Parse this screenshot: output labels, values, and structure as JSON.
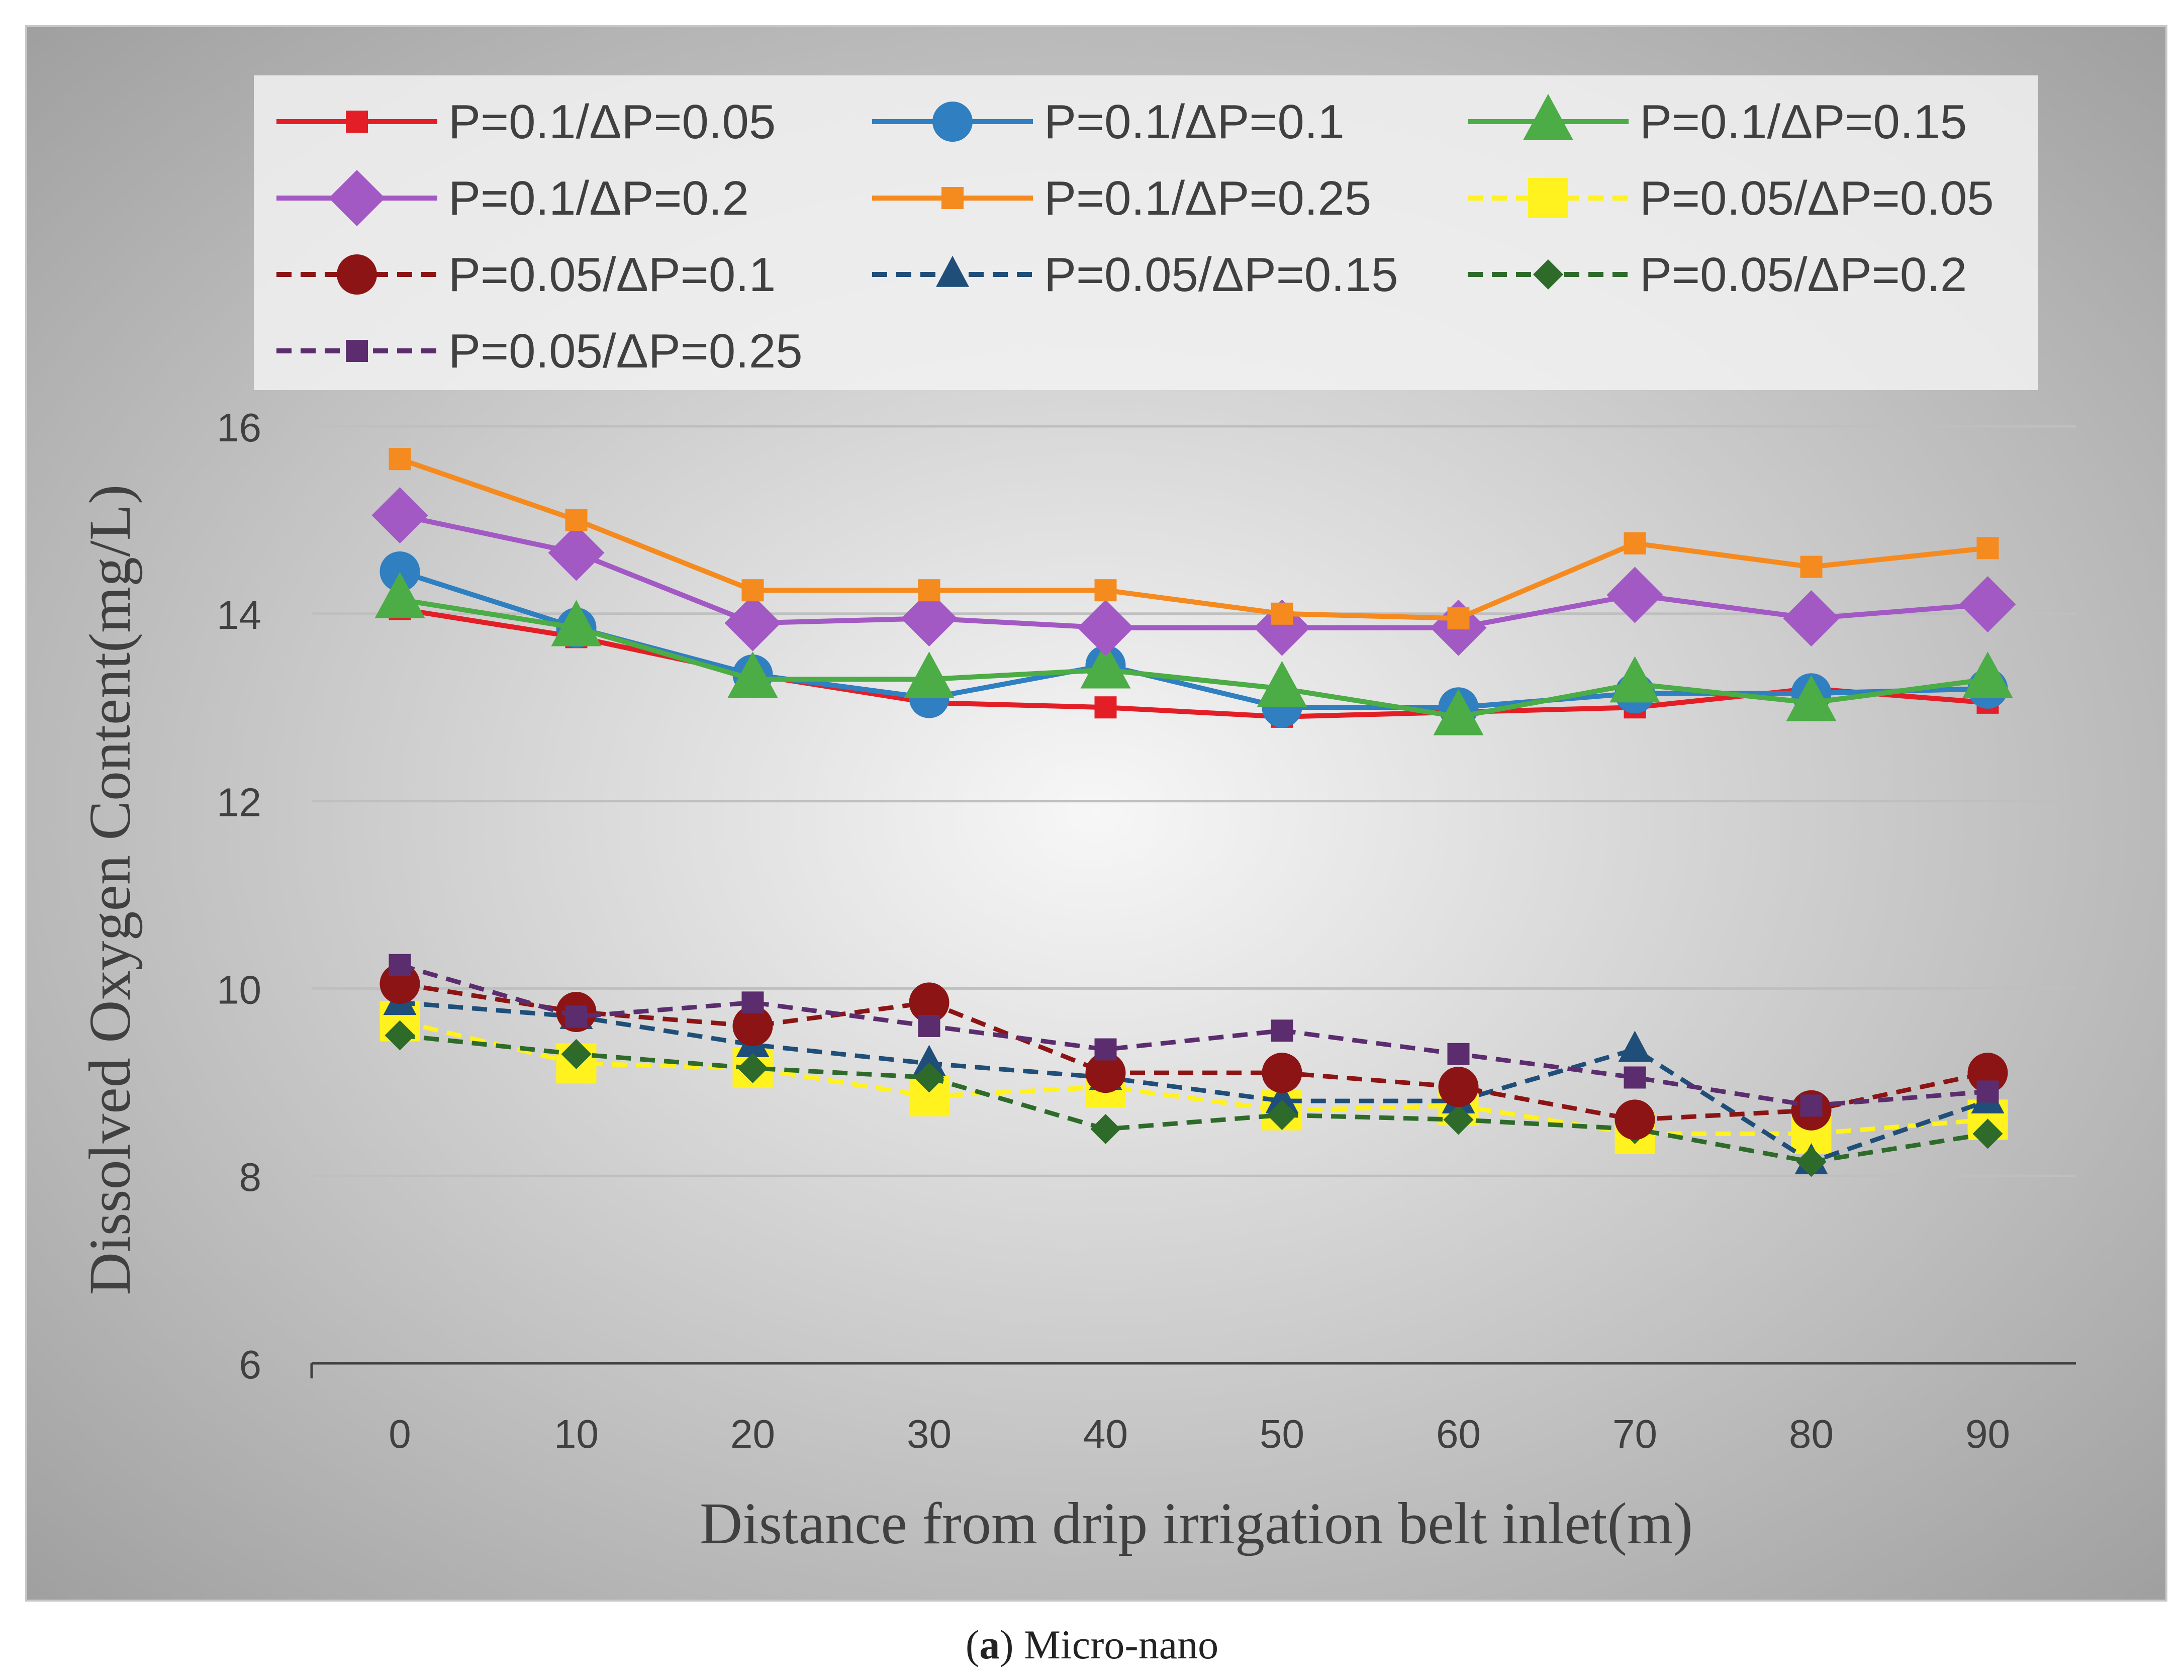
{
  "caption": {
    "letter": "a",
    "open": "(",
    "close": ")",
    "text": " Micro-nano"
  },
  "colors": {
    "plot_bg_outer": "#9a9a9a",
    "plot_bg_inner": "#f7f7f7",
    "legend_bg": "#f2f2f2",
    "gridline": "#bfbfbf",
    "axis": "#404040"
  },
  "chart_data": {
    "type": "line",
    "title": "",
    "xlabel": "Distance from drip irrigation belt inlet(m)",
    "ylabel": "Dissolved Oxygen Content(mg/L)",
    "categories": [
      "0",
      "10",
      "20",
      "30",
      "40",
      "50",
      "60",
      "70",
      "80",
      "90"
    ],
    "ylim": [
      6,
      16
    ],
    "yticks": [
      "6",
      "8",
      "10",
      "12",
      "14",
      "16"
    ],
    "grid": true,
    "legend_position": "top",
    "series": [
      {
        "name": "P=0.1/ΔP=0.05",
        "color": "#e41e26",
        "dash": false,
        "marker": "square-small",
        "values": [
          14.05,
          13.75,
          13.35,
          13.05,
          13.0,
          12.9,
          12.95,
          13.0,
          13.2,
          13.05
        ]
      },
      {
        "name": "P=0.1/ΔP=0.1",
        "color": "#2f7fc1",
        "dash": false,
        "marker": "circle",
        "values": [
          14.45,
          13.85,
          13.35,
          13.1,
          13.45,
          13.0,
          13.0,
          13.15,
          13.15,
          13.2
        ]
      },
      {
        "name": "P=0.1/ΔP=0.15",
        "color": "#4cac45",
        "dash": false,
        "marker": "triangle",
        "values": [
          14.15,
          13.85,
          13.3,
          13.3,
          13.4,
          13.2,
          12.9,
          13.25,
          13.05,
          13.3
        ]
      },
      {
        "name": "P=0.1/ΔP=0.2",
        "color": "#a259c4",
        "dash": false,
        "marker": "diamond",
        "values": [
          15.05,
          14.65,
          13.9,
          13.95,
          13.85,
          13.85,
          13.85,
          14.2,
          13.95,
          14.1
        ]
      },
      {
        "name": "P=0.1/ΔP=0.25",
        "color": "#f58a1f",
        "dash": false,
        "marker": "square-small",
        "values": [
          15.65,
          15.0,
          14.25,
          14.25,
          14.25,
          14.0,
          13.95,
          14.75,
          14.5,
          14.7
        ]
      },
      {
        "name": "P=0.05/ΔP=0.05",
        "color": "#fff21e",
        "dash": true,
        "marker": "square-large",
        "values": [
          9.65,
          9.2,
          9.15,
          8.85,
          8.95,
          8.7,
          8.75,
          8.45,
          8.45,
          8.6
        ]
      },
      {
        "name": "P=0.05/ΔP=0.1",
        "color": "#8c1414",
        "dash": true,
        "marker": "circle",
        "values": [
          10.05,
          9.75,
          9.6,
          9.85,
          9.1,
          9.1,
          8.95,
          8.6,
          8.7,
          9.1
        ]
      },
      {
        "name": "P=0.05/ΔP=0.15",
        "color": "#1f4e79",
        "dash": true,
        "marker": "triangle-small",
        "values": [
          9.85,
          9.7,
          9.4,
          9.2,
          9.05,
          8.8,
          8.8,
          9.35,
          8.15,
          8.8
        ]
      },
      {
        "name": "P=0.05/ΔP=0.2",
        "color": "#2e6b2a",
        "dash": true,
        "marker": "diamond-small",
        "values": [
          9.5,
          9.3,
          9.15,
          9.05,
          8.5,
          8.65,
          8.6,
          8.5,
          8.15,
          8.45
        ]
      },
      {
        "name": "P=0.05/ΔP=0.25",
        "color": "#5b2d6e",
        "dash": true,
        "marker": "square-small",
        "values": [
          10.25,
          9.7,
          9.85,
          9.6,
          9.35,
          9.55,
          9.3,
          9.05,
          8.75,
          8.9
        ]
      }
    ]
  }
}
